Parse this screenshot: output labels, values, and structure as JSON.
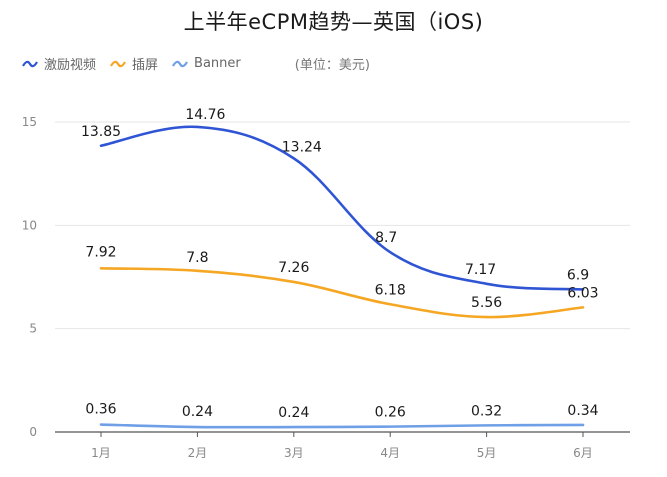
{
  "chart_data": {
    "type": "line",
    "title": "上半年eCPM趋势—英国（iOS)",
    "unit_note": "(单位：美元)",
    "categories": [
      "1月",
      "2月",
      "3月",
      "4月",
      "5月",
      "6月"
    ],
    "ylim": [
      0,
      15
    ],
    "yticks": [
      "0",
      "5",
      "10",
      "15"
    ],
    "grid": true,
    "legend_position": "top-left",
    "series": [
      {
        "name": "激励视频",
        "color": "#2f55d4",
        "values": [
          13.85,
          14.76,
          13.24,
          8.7,
          7.17,
          6.9
        ],
        "labels": [
          "13.85",
          "14.76",
          "13.24",
          "8.7",
          "7.17",
          "6.9"
        ]
      },
      {
        "name": "插屏",
        "color": "#f5a623",
        "values": [
          7.92,
          7.8,
          7.26,
          6.18,
          5.56,
          6.03
        ],
        "labels": [
          "7.92",
          "7.8",
          "7.26",
          "6.18",
          "5.56",
          "6.03"
        ]
      },
      {
        "name": "Banner",
        "color": "#6f9fe6",
        "values": [
          0.36,
          0.24,
          0.24,
          0.26,
          0.32,
          0.34
        ],
        "labels": [
          "0.36",
          "0.24",
          "0.24",
          "0.26",
          "0.32",
          "0.34"
        ]
      }
    ]
  }
}
